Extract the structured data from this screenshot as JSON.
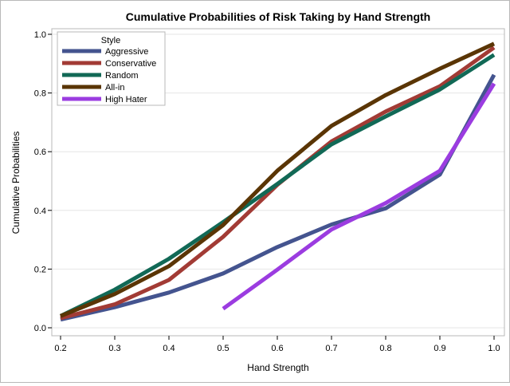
{
  "chart_data": {
    "type": "line",
    "title": "Cumulative Probabilities of Risk Taking by Hand Strength",
    "xlabel": "Hand Strength",
    "ylabel": "Cumulative Probabilities",
    "xlim": [
      0.2,
      1.0
    ],
    "ylim": [
      0.0,
      1.0
    ],
    "x_ticks": [
      "0.2",
      "0.3",
      "0.4",
      "0.5",
      "0.6",
      "0.7",
      "0.8",
      "0.9",
      "1.0"
    ],
    "y_ticks": [
      "0.0",
      "0.2",
      "0.4",
      "0.6",
      "0.8",
      "1.0"
    ],
    "grid": "horizontal",
    "legend": {
      "title": "Style",
      "position": "top-left"
    },
    "series": [
      {
        "name": "Aggressive",
        "color": "#44548f",
        "x": [
          0.2,
          0.3,
          0.4,
          0.5,
          0.6,
          0.7,
          0.8,
          0.9,
          1.0
        ],
        "y": [
          0.028,
          0.07,
          0.12,
          0.185,
          0.275,
          0.352,
          0.407,
          0.522,
          0.862
        ]
      },
      {
        "name": "Conservative",
        "color": "#a23b35",
        "x": [
          0.2,
          0.3,
          0.4,
          0.5,
          0.6,
          0.7,
          0.8,
          0.9,
          1.0
        ],
        "y": [
          0.033,
          0.08,
          0.163,
          0.31,
          0.487,
          0.635,
          0.737,
          0.823,
          0.955
        ]
      },
      {
        "name": "Random",
        "color": "#116956",
        "x": [
          0.2,
          0.3,
          0.4,
          0.5,
          0.6,
          0.7,
          0.8,
          0.9,
          1.0
        ],
        "y": [
          0.04,
          0.13,
          0.235,
          0.36,
          0.49,
          0.625,
          0.72,
          0.812,
          0.93
        ]
      },
      {
        "name": "All-in",
        "color": "#5a3505",
        "x": [
          0.2,
          0.3,
          0.4,
          0.5,
          0.6,
          0.7,
          0.8,
          0.9,
          1.0
        ],
        "y": [
          0.04,
          0.115,
          0.21,
          0.35,
          0.535,
          0.688,
          0.793,
          0.883,
          0.968
        ]
      },
      {
        "name": "High Hater",
        "color": "#9b3ce0",
        "x": [
          0.5,
          0.6,
          0.7,
          0.8,
          0.9,
          1.0
        ],
        "y": [
          0.065,
          0.198,
          0.335,
          0.425,
          0.535,
          0.832
        ]
      }
    ]
  }
}
